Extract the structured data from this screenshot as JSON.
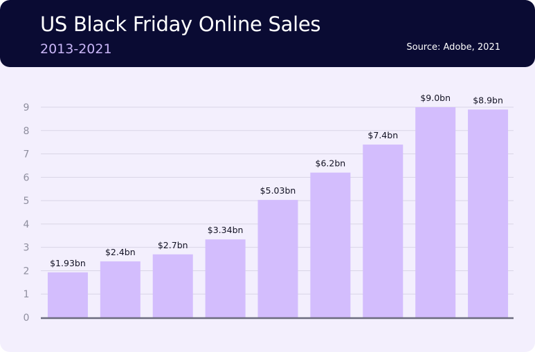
{
  "header": {
    "title": "US Black Friday Online Sales",
    "subtitle": "2013-2021",
    "source": "Source: Adobe, 2021"
  },
  "colors": {
    "header_bg": "#0a0b33",
    "plot_bg": "#f3effd",
    "bar": "#d3bdfd",
    "grid": "#d9d5e6",
    "axis": "#6b6b7e",
    "tick_text": "#8e8e9e",
    "label_text": "#111122"
  },
  "chart_data": {
    "type": "bar",
    "title": "US Black Friday Online Sales",
    "subtitle": "2013-2021",
    "xlabel": "",
    "ylabel": "",
    "ylim": [
      0,
      9
    ],
    "yticks": [
      0,
      1,
      2,
      3,
      4,
      5,
      6,
      7,
      8,
      9
    ],
    "grid": true,
    "values": [
      1.93,
      2.4,
      2.7,
      3.34,
      5.03,
      6.2,
      7.4,
      9.0,
      8.9
    ],
    "data_labels": [
      "$1.93bn",
      "$2.4bn",
      "$2.7bn",
      "$3.34bn",
      "$5.03bn",
      "$6.2bn",
      "$7.4bn",
      "$9.0bn",
      "$8.9bn"
    ]
  }
}
